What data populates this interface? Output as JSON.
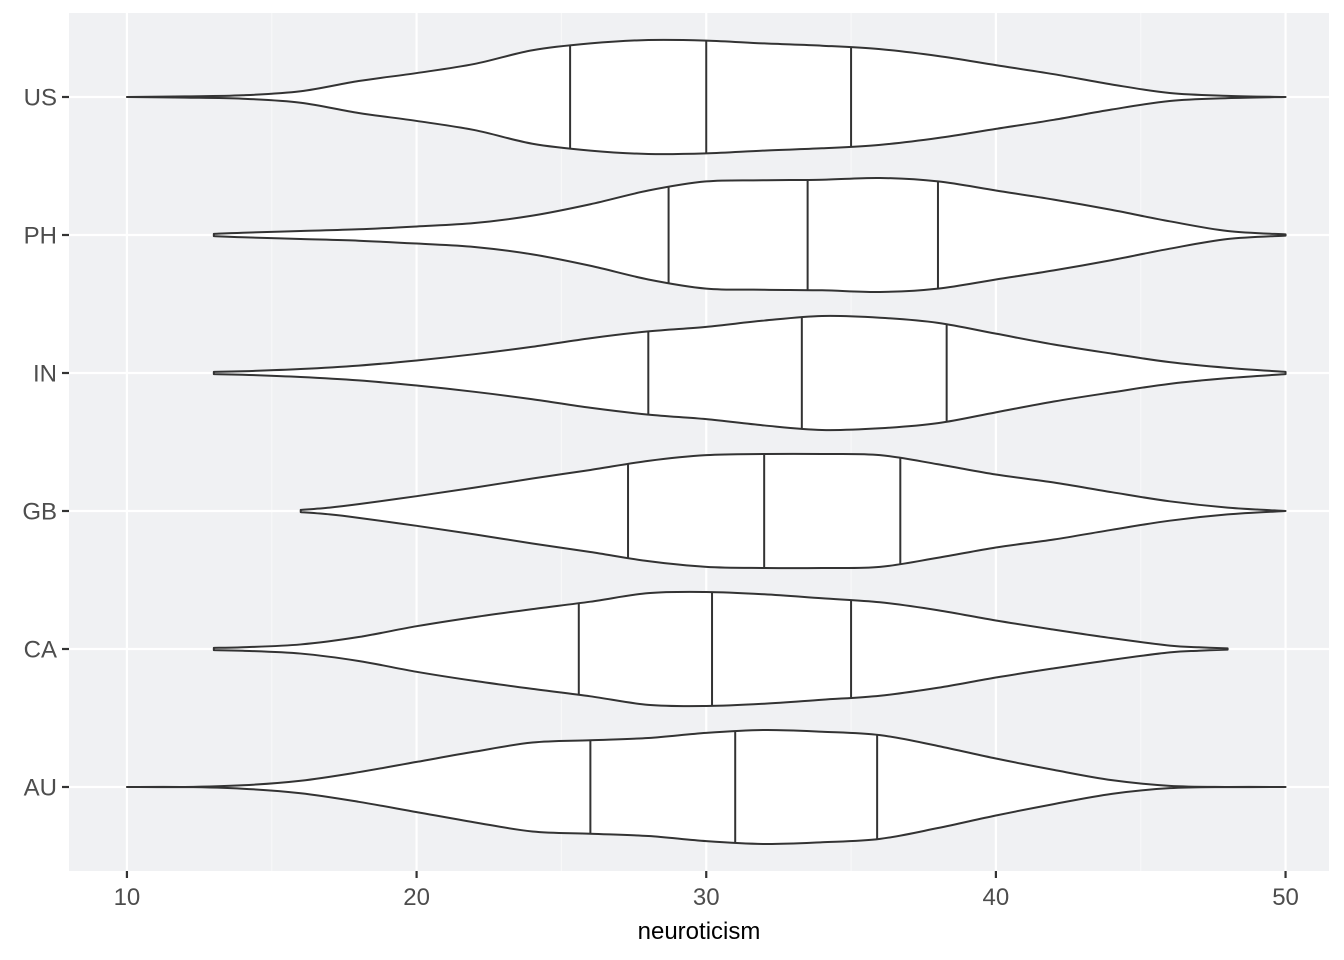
{
  "chart_data": {
    "type": "violin",
    "orientation": "horizontal",
    "xlabel": "neuroticism",
    "ylabel": "",
    "xlim": [
      8,
      51.5
    ],
    "x_ticks": [
      10,
      20,
      30,
      40,
      50
    ],
    "x_tick_labels": [
      "10",
      "20",
      "30",
      "40",
      "50"
    ],
    "categories": [
      "US",
      "PH",
      "IN",
      "GB",
      "CA",
      "AU"
    ],
    "grid": true,
    "legend": "none",
    "colors": {
      "panel_background": "#f0f1f3",
      "grid_major": "#ffffff",
      "grid_minor": "#f8f8f9",
      "violin_fill": "#ffffff",
      "violin_outline": "#333333",
      "tick_text": "#4d4d4d",
      "title_text": "#000000"
    },
    "series": [
      {
        "category": "US",
        "range": [
          10,
          50
        ],
        "quantiles": [
          25.3,
          30.0,
          35.0
        ],
        "density_profile": [
          [
            10,
            0.0
          ],
          [
            12,
            0.01
          ],
          [
            14,
            0.03
          ],
          [
            16,
            0.1
          ],
          [
            18,
            0.28
          ],
          [
            20,
            0.42
          ],
          [
            22,
            0.58
          ],
          [
            24,
            0.82
          ],
          [
            26,
            0.94
          ],
          [
            28,
            1.0
          ],
          [
            30,
            0.99
          ],
          [
            32,
            0.94
          ],
          [
            34,
            0.9
          ],
          [
            36,
            0.84
          ],
          [
            38,
            0.72
          ],
          [
            40,
            0.56
          ],
          [
            42,
            0.4
          ],
          [
            44,
            0.22
          ],
          [
            46,
            0.07
          ],
          [
            48,
            0.02
          ],
          [
            50,
            0.0
          ]
        ]
      },
      {
        "category": "PH",
        "range": [
          13,
          50
        ],
        "quantiles": [
          28.7,
          33.5,
          38.0
        ],
        "density_profile": [
          [
            13,
            0.02
          ],
          [
            14,
            0.04
          ],
          [
            16,
            0.07
          ],
          [
            18,
            0.1
          ],
          [
            20,
            0.15
          ],
          [
            22,
            0.21
          ],
          [
            24,
            0.34
          ],
          [
            26,
            0.54
          ],
          [
            28,
            0.78
          ],
          [
            30,
            0.94
          ],
          [
            32,
            0.96
          ],
          [
            34,
            0.97
          ],
          [
            36,
            1.0
          ],
          [
            38,
            0.94
          ],
          [
            40,
            0.78
          ],
          [
            42,
            0.62
          ],
          [
            44,
            0.44
          ],
          [
            46,
            0.24
          ],
          [
            48,
            0.07
          ],
          [
            50,
            0.01
          ]
        ]
      },
      {
        "category": "IN",
        "range": [
          13,
          50
        ],
        "quantiles": [
          28.0,
          33.3,
          38.3
        ],
        "density_profile": [
          [
            13,
            0.02
          ],
          [
            14,
            0.03
          ],
          [
            16,
            0.07
          ],
          [
            18,
            0.13
          ],
          [
            20,
            0.22
          ],
          [
            22,
            0.33
          ],
          [
            24,
            0.46
          ],
          [
            26,
            0.61
          ],
          [
            28,
            0.73
          ],
          [
            30,
            0.81
          ],
          [
            32,
            0.92
          ],
          [
            34,
            1.0
          ],
          [
            36,
            0.97
          ],
          [
            38,
            0.88
          ],
          [
            40,
            0.69
          ],
          [
            42,
            0.5
          ],
          [
            44,
            0.34
          ],
          [
            46,
            0.19
          ],
          [
            48,
            0.09
          ],
          [
            50,
            0.02
          ]
        ]
      },
      {
        "category": "GB",
        "range": [
          16,
          50
        ],
        "quantiles": [
          27.3,
          32.0,
          36.7
        ],
        "density_profile": [
          [
            16,
            0.02
          ],
          [
            17,
            0.06
          ],
          [
            18,
            0.12
          ],
          [
            20,
            0.26
          ],
          [
            22,
            0.41
          ],
          [
            24,
            0.57
          ],
          [
            26,
            0.72
          ],
          [
            28,
            0.88
          ],
          [
            30,
            0.98
          ],
          [
            32,
            1.0
          ],
          [
            34,
            1.0
          ],
          [
            36,
            0.98
          ],
          [
            38,
            0.82
          ],
          [
            40,
            0.64
          ],
          [
            42,
            0.5
          ],
          [
            44,
            0.33
          ],
          [
            46,
            0.17
          ],
          [
            48,
            0.06
          ],
          [
            50,
            0.0
          ]
        ]
      },
      {
        "category": "CA",
        "range": [
          13,
          48
        ],
        "quantiles": [
          25.6,
          30.2,
          35.0
        ],
        "density_profile": [
          [
            13,
            0.02
          ],
          [
            14,
            0.03
          ],
          [
            16,
            0.08
          ],
          [
            18,
            0.21
          ],
          [
            20,
            0.4
          ],
          [
            22,
            0.56
          ],
          [
            24,
            0.7
          ],
          [
            26,
            0.83
          ],
          [
            28,
            0.98
          ],
          [
            30,
            1.0
          ],
          [
            32,
            0.96
          ],
          [
            34,
            0.89
          ],
          [
            36,
            0.82
          ],
          [
            38,
            0.68
          ],
          [
            40,
            0.5
          ],
          [
            42,
            0.34
          ],
          [
            44,
            0.19
          ],
          [
            46,
            0.06
          ],
          [
            47,
            0.03
          ],
          [
            48,
            0.01
          ]
        ]
      },
      {
        "category": "AU",
        "range": [
          10,
          50
        ],
        "quantiles": [
          26.0,
          31.0,
          35.9
        ],
        "density_profile": [
          [
            10,
            0.0
          ],
          [
            12,
            0.0
          ],
          [
            14,
            0.03
          ],
          [
            16,
            0.11
          ],
          [
            18,
            0.26
          ],
          [
            20,
            0.44
          ],
          [
            22,
            0.62
          ],
          [
            24,
            0.78
          ],
          [
            26,
            0.82
          ],
          [
            28,
            0.86
          ],
          [
            30,
            0.95
          ],
          [
            32,
            1.0
          ],
          [
            34,
            0.97
          ],
          [
            36,
            0.91
          ],
          [
            38,
            0.72
          ],
          [
            40,
            0.5
          ],
          [
            42,
            0.3
          ],
          [
            44,
            0.12
          ],
          [
            46,
            0.02
          ],
          [
            48,
            0.0
          ],
          [
            50,
            0.0
          ]
        ]
      }
    ]
  }
}
